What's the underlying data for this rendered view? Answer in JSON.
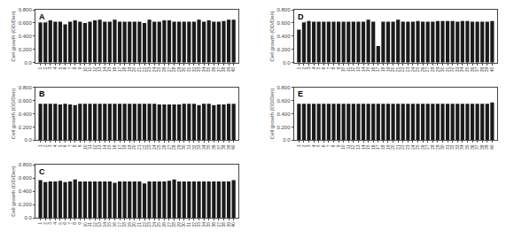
{
  "chart_data": [
    {
      "type": "bar",
      "title": "A",
      "ylabel": "Cell growth (OD/Den)",
      "color": "#1a1a1a",
      "grid": false,
      "x": [
        1,
        2,
        3,
        4,
        5,
        6,
        7,
        8,
        9,
        10,
        11,
        12,
        13,
        14,
        15,
        16,
        17,
        18,
        19,
        20,
        21,
        22,
        23,
        24,
        25,
        26,
        27,
        28,
        29,
        30,
        31,
        32,
        33,
        34,
        35,
        36,
        37,
        38,
        39,
        40
      ],
      "values": [
        0.62,
        0.62,
        0.64,
        0.62,
        0.62,
        0.58,
        0.62,
        0.64,
        0.62,
        0.6,
        0.62,
        0.64,
        0.65,
        0.62,
        0.62,
        0.65,
        0.62,
        0.62,
        0.62,
        0.62,
        0.62,
        0.6,
        0.65,
        0.62,
        0.62,
        0.64,
        0.64,
        0.62,
        0.62,
        0.62,
        0.62,
        0.62,
        0.65,
        0.62,
        0.64,
        0.62,
        0.62,
        0.63,
        0.65,
        0.65
      ],
      "xlim": [
        0,
        41
      ],
      "xticks": [
        1,
        2,
        3,
        4,
        5,
        6,
        7,
        8,
        9,
        10,
        11,
        12,
        13,
        14,
        15,
        16,
        17,
        18,
        19,
        20,
        21,
        22,
        23,
        24,
        25,
        26,
        27,
        28,
        29,
        30,
        31,
        32,
        33,
        34,
        35,
        36,
        37,
        38,
        39,
        40
      ],
      "ylim": [
        0,
        0.8
      ],
      "yticks": [
        {
          "value": 0.0,
          "label": "0.0"
        },
        {
          "value": 0.2,
          "label": "0.200"
        },
        {
          "value": 0.4,
          "label": "0.400"
        },
        {
          "value": 0.6,
          "label": "0.600"
        },
        {
          "value": 0.8,
          "label": "0.800"
        }
      ]
    },
    {
      "type": "bar",
      "title": "B",
      "ylabel": "Cell growth (OD/Den)",
      "color": "#1a1a1a",
      "grid": false,
      "x": [
        1,
        2,
        3,
        4,
        5,
        6,
        7,
        8,
        9,
        10,
        11,
        12,
        13,
        14,
        15,
        16,
        17,
        18,
        19,
        20,
        21,
        22,
        23,
        24,
        25,
        26,
        27,
        28,
        29,
        30,
        31,
        32,
        33,
        34,
        35,
        36,
        37,
        38,
        39,
        40
      ],
      "values": [
        0.55,
        0.55,
        0.55,
        0.55,
        0.54,
        0.55,
        0.54,
        0.53,
        0.55,
        0.55,
        0.55,
        0.55,
        0.55,
        0.55,
        0.55,
        0.55,
        0.55,
        0.55,
        0.55,
        0.55,
        0.55,
        0.55,
        0.55,
        0.55,
        0.54,
        0.54,
        0.54,
        0.54,
        0.54,
        0.55,
        0.55,
        0.55,
        0.53,
        0.55,
        0.55,
        0.53,
        0.54,
        0.54,
        0.55,
        0.55
      ],
      "xlim": [
        0,
        41
      ],
      "xticks": [
        1,
        2,
        3,
        4,
        5,
        6,
        7,
        8,
        9,
        10,
        11,
        12,
        13,
        14,
        15,
        16,
        17,
        18,
        19,
        20,
        21,
        22,
        23,
        24,
        25,
        26,
        27,
        28,
        29,
        30,
        31,
        32,
        33,
        34,
        35,
        36,
        37,
        38,
        39,
        40
      ],
      "ylim": [
        0,
        0.8
      ],
      "yticks": [
        {
          "value": 0.0,
          "label": "0.0"
        },
        {
          "value": 0.2,
          "label": "0.200"
        },
        {
          "value": 0.4,
          "label": "0.400"
        },
        {
          "value": 0.6,
          "label": "0.600"
        },
        {
          "value": 0.8,
          "label": "0.800"
        }
      ]
    },
    {
      "type": "bar",
      "title": "C",
      "ylabel": "Cell growth (OD/Den)",
      "color": "#1a1a1a",
      "grid": false,
      "x": [
        1,
        2,
        3,
        4,
        5,
        6,
        7,
        8,
        9,
        10,
        11,
        12,
        13,
        14,
        15,
        16,
        17,
        18,
        19,
        20,
        21,
        22,
        23,
        24,
        25,
        26,
        27,
        28,
        29,
        30,
        31,
        32,
        33,
        34,
        35,
        36,
        37,
        38,
        39,
        40
      ],
      "values": [
        0.57,
        0.54,
        0.55,
        0.55,
        0.56,
        0.54,
        0.55,
        0.58,
        0.55,
        0.55,
        0.55,
        0.55,
        0.55,
        0.55,
        0.55,
        0.53,
        0.55,
        0.55,
        0.55,
        0.55,
        0.55,
        0.52,
        0.55,
        0.55,
        0.55,
        0.55,
        0.56,
        0.58,
        0.55,
        0.55,
        0.55,
        0.55,
        0.55,
        0.55,
        0.55,
        0.55,
        0.55,
        0.55,
        0.55,
        0.57
      ],
      "xlim": [
        0,
        41
      ],
      "xticks": [
        1,
        2,
        3,
        4,
        5,
        6,
        7,
        8,
        9,
        10,
        11,
        12,
        13,
        14,
        15,
        16,
        17,
        18,
        19,
        20,
        21,
        22,
        23,
        24,
        25,
        26,
        27,
        28,
        29,
        30,
        31,
        32,
        33,
        34,
        35,
        36,
        37,
        38,
        39,
        40
      ],
      "ylim": [
        0,
        0.8
      ],
      "yticks": [
        {
          "value": 0.0,
          "label": "0.0"
        },
        {
          "value": 0.2,
          "label": "0.200"
        },
        {
          "value": 0.4,
          "label": "0.400"
        },
        {
          "value": 0.6,
          "label": "0.600"
        },
        {
          "value": 0.8,
          "label": "0.800"
        }
      ]
    },
    {
      "type": "bar",
      "title": "D",
      "ylabel": "Cell growth (OD/Den)",
      "color": "#1a1a1a",
      "grid": false,
      "x": [
        1,
        2,
        3,
        4,
        5,
        6,
        7,
        8,
        9,
        10,
        11,
        12,
        13,
        14,
        15,
        16,
        17,
        18,
        19,
        20,
        21,
        22,
        23,
        24,
        25,
        26,
        27,
        28,
        29,
        30,
        31,
        32,
        33,
        34,
        35,
        36,
        37,
        38,
        39,
        40
      ],
      "values": [
        0.5,
        0.62,
        0.63,
        0.62,
        0.62,
        0.62,
        0.62,
        0.62,
        0.62,
        0.62,
        0.62,
        0.62,
        0.62,
        0.62,
        0.65,
        0.62,
        0.25,
        0.62,
        0.62,
        0.62,
        0.65,
        0.62,
        0.62,
        0.62,
        0.63,
        0.62,
        0.62,
        0.62,
        0.63,
        0.63,
        0.63,
        0.63,
        0.62,
        0.63,
        0.63,
        0.62,
        0.62,
        0.62,
        0.62,
        0.63
      ],
      "xlim": [
        0,
        41
      ],
      "xticks": [
        1,
        2,
        3,
        4,
        5,
        6,
        7,
        8,
        9,
        10,
        11,
        12,
        13,
        14,
        15,
        16,
        17,
        18,
        19,
        20,
        21,
        22,
        23,
        24,
        25,
        26,
        27,
        28,
        29,
        30,
        31,
        32,
        33,
        34,
        35,
        36,
        37,
        38,
        39,
        40
      ],
      "ylim": [
        0,
        0.8
      ],
      "yticks": [
        {
          "value": 0.0,
          "label": "0.0"
        },
        {
          "value": 0.2,
          "label": "0.200"
        },
        {
          "value": 0.4,
          "label": "0.400"
        },
        {
          "value": 0.6,
          "label": "0.600"
        },
        {
          "value": 0.8,
          "label": "0.800"
        }
      ]
    },
    {
      "type": "bar",
      "title": "E",
      "ylabel": "Cell growth (OD/Den)",
      "color": "#1a1a1a",
      "grid": false,
      "x": [
        1,
        2,
        3,
        4,
        5,
        6,
        7,
        8,
        9,
        10,
        11,
        12,
        13,
        14,
        15,
        16,
        17,
        18,
        19,
        20,
        21,
        22,
        23,
        24,
        25,
        26,
        27,
        28,
        29,
        30,
        31,
        32,
        33,
        34,
        35,
        36,
        37,
        38,
        39,
        40
      ],
      "values": [
        0.55,
        0.55,
        0.55,
        0.55,
        0.55,
        0.55,
        0.55,
        0.55,
        0.55,
        0.55,
        0.55,
        0.55,
        0.55,
        0.55,
        0.55,
        0.55,
        0.55,
        0.55,
        0.55,
        0.55,
        0.55,
        0.55,
        0.55,
        0.55,
        0.55,
        0.55,
        0.55,
        0.55,
        0.55,
        0.55,
        0.55,
        0.55,
        0.55,
        0.55,
        0.55,
        0.55,
        0.55,
        0.55,
        0.55,
        0.57
      ],
      "xlim": [
        0,
        41
      ],
      "xticks": [
        1,
        2,
        3,
        4,
        5,
        6,
        7,
        8,
        9,
        10,
        11,
        12,
        13,
        14,
        15,
        16,
        17,
        18,
        19,
        20,
        21,
        22,
        23,
        24,
        25,
        26,
        27,
        28,
        29,
        30,
        31,
        32,
        33,
        34,
        35,
        36,
        37,
        38,
        39,
        40
      ],
      "ylim": [
        0,
        0.8
      ],
      "yticks": [
        {
          "value": 0.0,
          "label": "0.0"
        },
        {
          "value": 0.2,
          "label": "0.200"
        },
        {
          "value": 0.4,
          "label": "0.400"
        },
        {
          "value": 0.6,
          "label": "0.600"
        },
        {
          "value": 0.8,
          "label": "0.800"
        }
      ]
    }
  ]
}
